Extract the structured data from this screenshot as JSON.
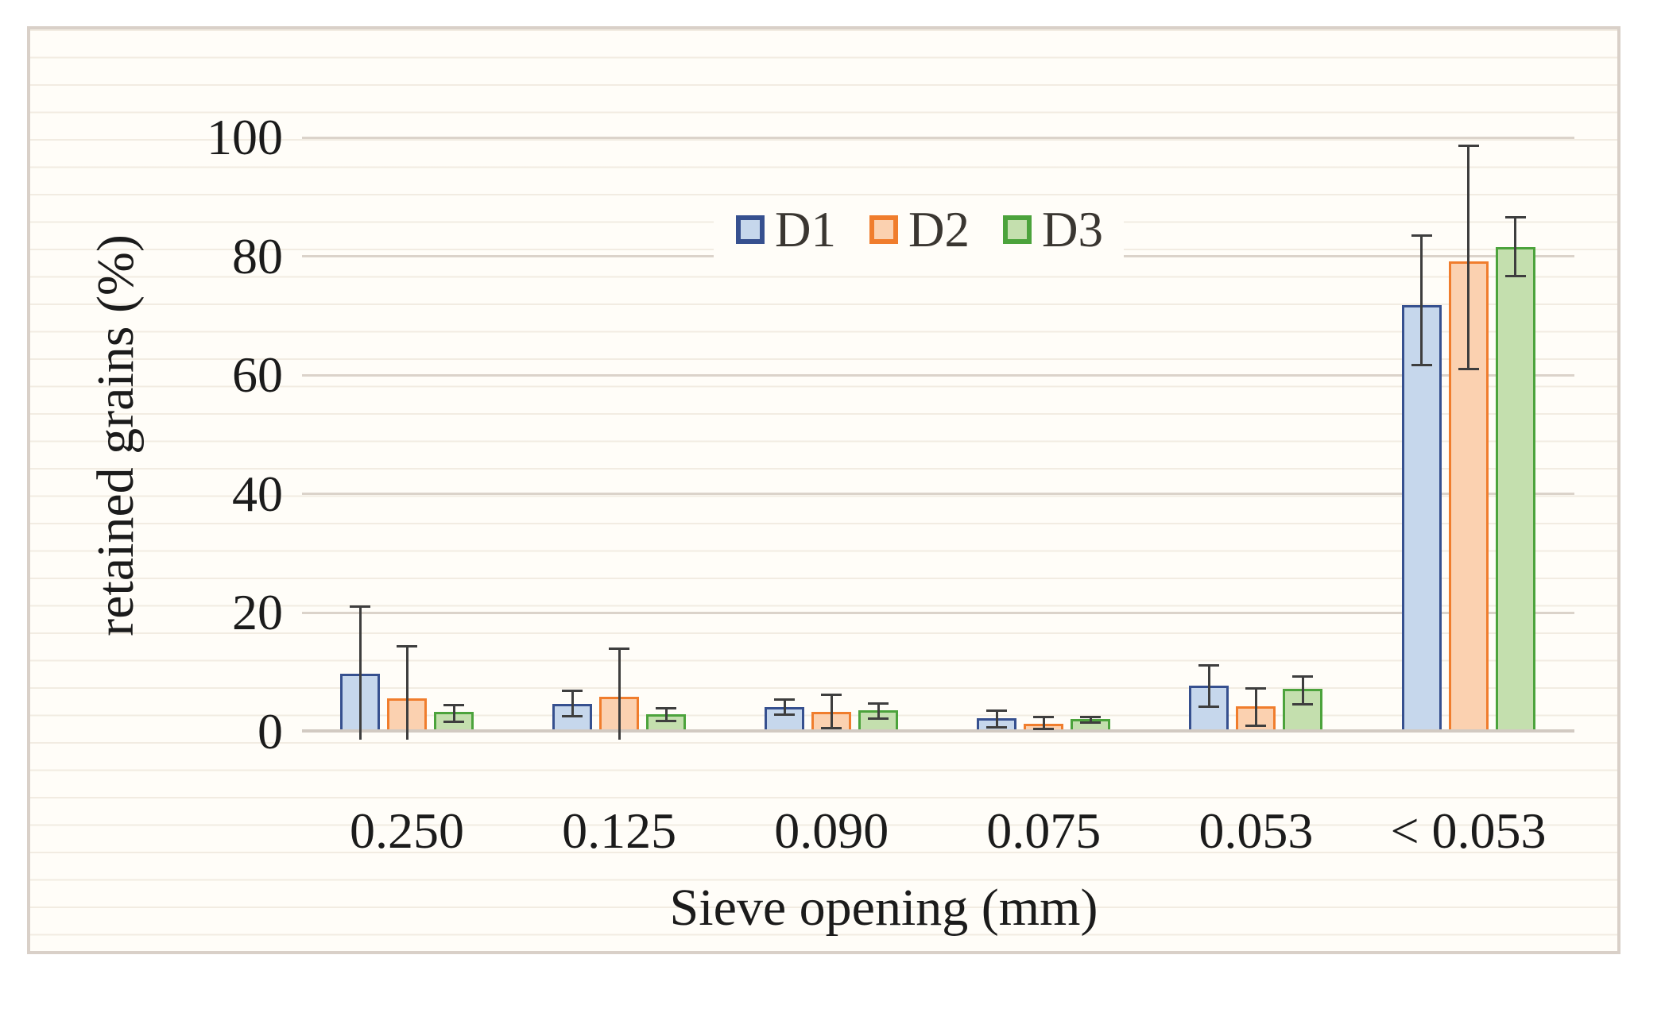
{
  "chart_data": {
    "type": "bar",
    "title": "",
    "xlabel": "Sieve opening (mm)",
    "ylabel": "retained grains (%)",
    "categories": [
      "0.250",
      "0.125",
      "0.090",
      "0.075",
      "0.053",
      "< 0.053"
    ],
    "y_ticks": [
      0,
      20,
      40,
      60,
      80,
      100
    ],
    "ylim": [
      0,
      100
    ],
    "grid": "horizontal-major-every-20",
    "legend_position": "top-center-inside",
    "error_bar_color": "#3e3e3e",
    "series": [
      {
        "name": "D1",
        "fill": "#c6d7ec",
        "border": "#36508f",
        "values": [
          9.8,
          4.7,
          4.2,
          2.3,
          7.8,
          71.8
        ],
        "error_up": [
          11.3,
          2.2,
          1.3,
          1.3,
          3.4,
          11.8
        ],
        "error_down": [
          10.3,
          2.2,
          1.4,
          1.6,
          3.7,
          10.2
        ]
      },
      {
        "name": "D2",
        "fill": "#fbd1b0",
        "border": "#f07d2d",
        "values": [
          5.6,
          5.9,
          3.4,
          1.4,
          4.3,
          79.1
        ],
        "error_up": [
          8.9,
          8.2,
          2.9,
          1.1,
          3.0,
          19.5
        ],
        "error_down": [
          6.5,
          6.8,
          2.8,
          1.0,
          3.3,
          18.1
        ]
      },
      {
        "name": "D3",
        "fill": "#c4dfae",
        "border": "#4ca33c",
        "values": [
          3.4,
          3.0,
          3.6,
          2.1,
          7.2,
          81.6
        ],
        "error_up": [
          1.1,
          1.0,
          1.2,
          0.4,
          2.2,
          5.0
        ],
        "error_down": [
          1.8,
          1.3,
          1.4,
          0.6,
          2.6,
          5.0
        ]
      }
    ]
  }
}
